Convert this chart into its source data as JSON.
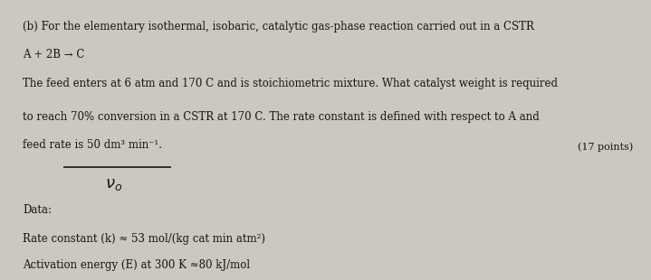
{
  "background_color": "#ccc8c0",
  "text_color": "#1a1510",
  "line1": "(b) For the elementary isothermal, isobaric, catalytic gas-phase reaction carried out in a CSTR",
  "line2": "A + 2B → C",
  "line3": "The feed enters at 6 atm and 170 C and is stoichiometric mixture. What catalyst weight is required",
  "line4": "to reach 70% conversion in a CSTR at 170 C. The rate constant is defined with respect to A and",
  "line5": "feed rate is 50 dm³ min⁻¹.",
  "points_text": "(17 points)",
  "vo_text": "νo",
  "data_label": "Data:",
  "rate_constant": "Rate constant (k) ≈ 53 mol/(kg cat min atm²)",
  "activation_energy": "Activation energy (E) at 300 K ≈80 kJ/mol",
  "font_size_main": 8.5,
  "font_size_vo": 13
}
